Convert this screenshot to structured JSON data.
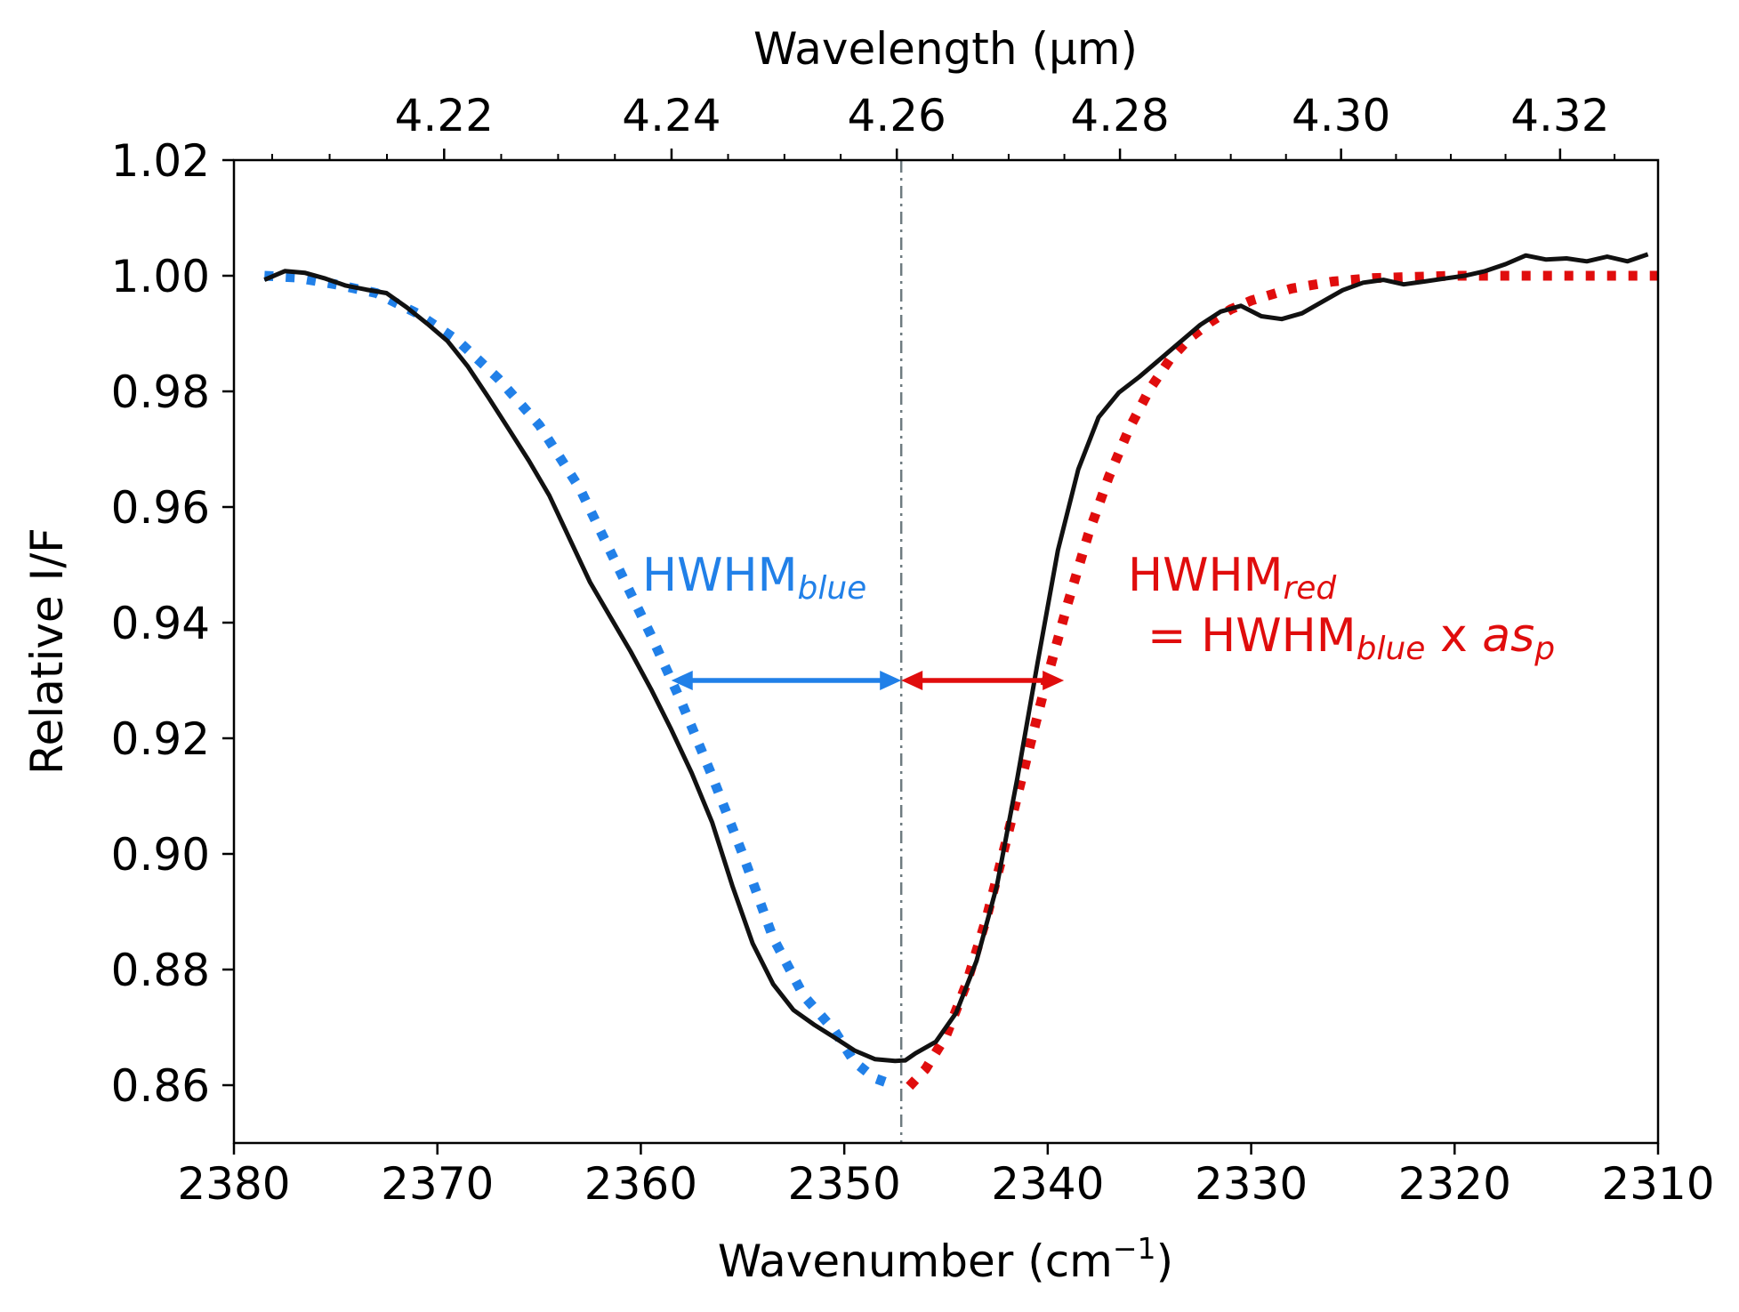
{
  "chart_data": {
    "type": "line",
    "xlabel": "Wavenumber (cm",
    "xlabel_sup": "−1",
    "xlabel_close": ")",
    "ylabel": "Relative I/F",
    "top_axis_label": "Wavelength (μm)",
    "xlim": [
      2380,
      2310
    ],
    "ylim": [
      0.85,
      1.02
    ],
    "x_ticks": [
      2380,
      2370,
      2360,
      2350,
      2340,
      2330,
      2320,
      2310
    ],
    "x_tick_labels": [
      "2380",
      "2370",
      "2360",
      "2350",
      "2340",
      "2330",
      "2320",
      "2310"
    ],
    "y_ticks": [
      0.86,
      0.88,
      0.9,
      0.92,
      0.94,
      0.96,
      0.98,
      1.0,
      1.02
    ],
    "y_tick_labels": [
      "0.86",
      "0.88",
      "0.90",
      "0.92",
      "0.94",
      "0.96",
      "0.98",
      "1.00",
      "1.02"
    ],
    "top_ticks_um": [
      4.22,
      4.24,
      4.26,
      4.28,
      4.3,
      4.32
    ],
    "top_tick_labels": [
      "4.22",
      "4.24",
      "4.26",
      "4.28",
      "4.30",
      "4.32"
    ],
    "center_line": {
      "x": 2347.2,
      "color": "#6e7b80"
    },
    "hwhm_y": 0.93,
    "hwhm_blue_left": 2358.5,
    "hwhm_red_right": 2339.2,
    "annotations": {
      "blue_main": "HWHM",
      "blue_sub": "blue",
      "red_main": "HWHM",
      "red_sub": "red",
      "red_line2_prefix": "= HWHM",
      "red_line2_sub": "blue",
      "red_line2_x": " x ",
      "red_line2_as": "as",
      "red_line2_p": "p"
    },
    "colors": {
      "observed": "#111111",
      "blue_fit": "#2180e8",
      "red_fit": "#e00d0d"
    },
    "series": [
      {
        "name": "observed",
        "style": "solid",
        "x": [
          2378.5,
          2377.5,
          2376.5,
          2375.5,
          2374.5,
          2373.5,
          2372.5,
          2371.5,
          2370.5,
          2369.5,
          2368.5,
          2367.5,
          2366.5,
          2365.5,
          2364.5,
          2363.5,
          2362.5,
          2361.5,
          2360.5,
          2359.5,
          2358.5,
          2357.5,
          2356.5,
          2355.5,
          2354.5,
          2353.5,
          2352.5,
          2351.5,
          2350.5,
          2349.5,
          2348.5,
          2347.5,
          2347.0,
          2346.5,
          2345.5,
          2344.5,
          2343.5,
          2342.5,
          2341.5,
          2340.5,
          2339.5,
          2338.5,
          2337.5,
          2336.5,
          2335.5,
          2334.5,
          2333.5,
          2332.5,
          2331.5,
          2330.5,
          2329.5,
          2328.5,
          2327.5,
          2326.5,
          2325.5,
          2324.5,
          2323.5,
          2322.5,
          2321.5,
          2320.5,
          2319.5,
          2318.5,
          2317.5,
          2316.5,
          2315.5,
          2314.5,
          2313.5,
          2312.5,
          2311.5,
          2310.5
        ],
        "y": [
          0.9993,
          1.0008,
          1.0005,
          0.9995,
          0.9983,
          0.9976,
          0.997,
          0.9945,
          0.9917,
          0.9887,
          0.9843,
          0.979,
          0.9735,
          0.968,
          0.962,
          0.9545,
          0.947,
          0.941,
          0.935,
          0.9285,
          0.9215,
          0.914,
          0.9055,
          0.8945,
          0.8845,
          0.8775,
          0.873,
          0.8705,
          0.8683,
          0.866,
          0.8645,
          0.8642,
          0.8643,
          0.8655,
          0.8675,
          0.8725,
          0.8815,
          0.8945,
          0.913,
          0.933,
          0.9525,
          0.9665,
          0.9755,
          0.9798,
          0.9825,
          0.9855,
          0.9885,
          0.9915,
          0.9938,
          0.9948,
          0.993,
          0.9925,
          0.9935,
          0.9955,
          0.9975,
          0.9988,
          0.9993,
          0.9985,
          0.999,
          0.9995,
          1.0,
          1.0008,
          1.002,
          1.0035,
          1.0028,
          1.003,
          1.0025,
          1.0033,
          1.0025,
          1.0037
        ]
      },
      {
        "name": "blue fit",
        "style": "dotted",
        "x": [
          2378.5,
          2377.0,
          2375.0,
          2373.0,
          2371.0,
          2369.0,
          2367.0,
          2365.0,
          2363.0,
          2361.0,
          2359.5,
          2358.0,
          2356.5,
          2355.0,
          2353.5,
          2352.0,
          2350.5,
          2349.5,
          2348.5,
          2347.7
        ],
        "y": [
          1.0,
          0.9997,
          0.9985,
          0.997,
          0.9935,
          0.9888,
          0.9822,
          0.9742,
          0.9632,
          0.9487,
          0.9378,
          0.9262,
          0.9135,
          0.9,
          0.8855,
          0.8755,
          0.8695,
          0.864,
          0.8612,
          0.8602
        ]
      },
      {
        "name": "red fit",
        "style": "dotted",
        "x": [
          2346.8,
          2346.0,
          2345.0,
          2344.0,
          2343.0,
          2342.0,
          2341.0,
          2340.0,
          2339.0,
          2338.0,
          2337.0,
          2336.0,
          2335.0,
          2334.0,
          2333.0,
          2332.0,
          2331.0,
          2330.0,
          2328.0,
          2326.0,
          2324.0,
          2322.0,
          2320.0,
          2318.0,
          2316.0,
          2314.0,
          2312.0,
          2310.0
        ],
        "y": [
          0.8598,
          0.8628,
          0.8685,
          0.8775,
          0.889,
          0.9028,
          0.917,
          0.9308,
          0.9435,
          0.9553,
          0.9652,
          0.9735,
          0.9803,
          0.9855,
          0.9893,
          0.992,
          0.9942,
          0.9957,
          0.9978,
          0.999,
          0.9996,
          0.9998,
          1.0,
          1.0,
          1.0,
          1.0,
          1.0,
          1.0
        ]
      }
    ]
  }
}
